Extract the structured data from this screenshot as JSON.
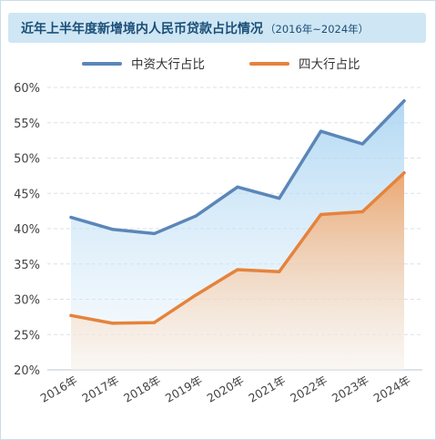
{
  "title": {
    "main": "近年上半年度新增境内人民币贷款占比情况",
    "range": "（2016年~2024年）"
  },
  "colors": {
    "title_bg": "#cfe6f4",
    "title_text": "#1b4f78",
    "series_blue": "#5b86b8",
    "series_orange": "#e5833c",
    "grid": "#d9e2ea",
    "axis_text": "#444444"
  },
  "chart_data": {
    "type": "area",
    "categories": [
      "2016年",
      "2017年",
      "2018年",
      "2019年",
      "2020年",
      "2021年",
      "2022年",
      "2023年",
      "2024年"
    ],
    "ylim": [
      20,
      60
    ],
    "yticks": [
      "20%",
      "25%",
      "30%",
      "35%",
      "40%",
      "45%",
      "50%",
      "55%",
      "60%"
    ],
    "grid": true,
    "legend_position": "top-center",
    "series": [
      {
        "name": "中资大行占比",
        "values": [
          41.6,
          39.9,
          39.3,
          41.8,
          45.9,
          44.3,
          53.8,
          52.0,
          58.1
        ],
        "color": "#5b86b8"
      },
      {
        "name": "四大行占比",
        "values": [
          27.7,
          26.6,
          26.7,
          30.6,
          34.2,
          33.9,
          42.0,
          42.4,
          47.9
        ],
        "color": "#e5833c"
      }
    ]
  }
}
